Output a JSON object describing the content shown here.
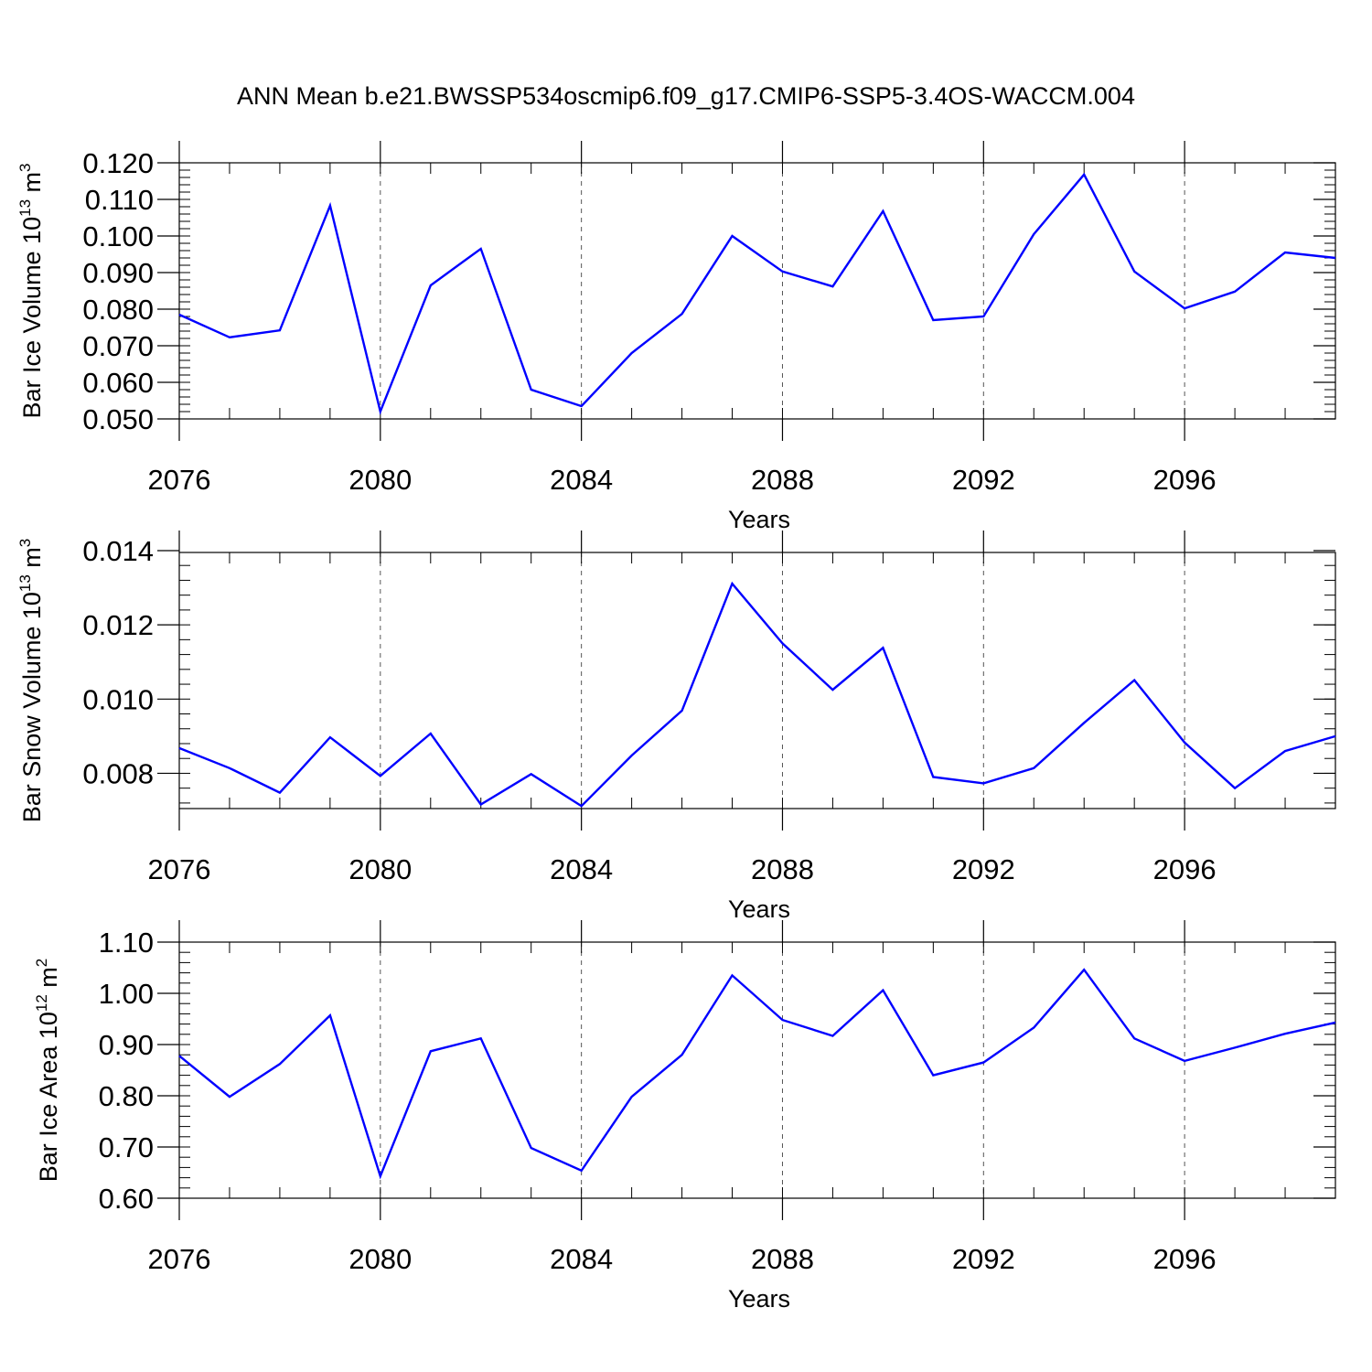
{
  "title": "ANN Mean b.e21.BWSSP534oscmip6.f09_g17.CMIP6-SSP5-3.4OS-WACCM.004",
  "colors": {
    "line": "#0000ff",
    "axis": "#000000",
    "grid": "#555555"
  },
  "chart_data": [
    {
      "type": "line",
      "ylabel": {
        "main": "Bar Ice Volume 10",
        "sup": "13",
        "unit": " m",
        "unit_sup": "3"
      },
      "xlabel": "Years",
      "xlim": [
        2076,
        2099
      ],
      "ylim": [
        0.05,
        0.12
      ],
      "yticks": [
        0.05,
        0.06,
        0.07,
        0.08,
        0.09,
        0.1,
        0.11,
        0.12
      ],
      "ytick_labels": [
        "0.050",
        "0.060",
        "0.070",
        "0.080",
        "0.090",
        "0.100",
        "0.110",
        "0.120"
      ],
      "xticks": [
        2076,
        2080,
        2084,
        2088,
        2092,
        2096
      ],
      "xtick_labels": [
        "2076",
        "2080",
        "2084",
        "2088",
        "2092",
        "2096"
      ],
      "x": [
        2076,
        2077,
        2078,
        2079,
        2080,
        2081,
        2082,
        2083,
        2084,
        2085,
        2086,
        2087,
        2088,
        2089,
        2090,
        2091,
        2092,
        2093,
        2094,
        2095,
        2096,
        2097,
        2098,
        2099
      ],
      "values": [
        0.0785,
        0.0723,
        0.0742,
        0.1083,
        0.052,
        0.0865,
        0.0965,
        0.058,
        0.0535,
        0.068,
        0.0787,
        0.1,
        0.0903,
        0.0862,
        0.1068,
        0.077,
        0.078,
        0.1005,
        0.1168,
        0.0903,
        0.0802,
        0.0848,
        0.0955,
        0.094
      ]
    },
    {
      "type": "line",
      "ylabel": {
        "main": "Bar Snow Volume 10",
        "sup": "13",
        "unit": " m",
        "unit_sup": "3"
      },
      "xlabel": "Years",
      "xlim": [
        2076,
        2099
      ],
      "ylim": [
        0.00705,
        0.01395
      ],
      "yticks": [
        0.008,
        0.01,
        0.012,
        0.014
      ],
      "ytick_labels": [
        "0.008",
        "0.010",
        "0.012",
        "0.014"
      ],
      "xticks": [
        2076,
        2080,
        2084,
        2088,
        2092,
        2096
      ],
      "xtick_labels": [
        "2076",
        "2080",
        "2084",
        "2088",
        "2092",
        "2096"
      ],
      "x": [
        2076,
        2077,
        2078,
        2079,
        2080,
        2081,
        2082,
        2083,
        2084,
        2085,
        2086,
        2087,
        2088,
        2089,
        2090,
        2091,
        2092,
        2093,
        2094,
        2095,
        2096,
        2097,
        2098,
        2099
      ],
      "values": [
        0.00868,
        0.00814,
        0.00748,
        0.00897,
        0.00793,
        0.00907,
        0.00716,
        0.00798,
        0.00712,
        0.00848,
        0.00969,
        0.01311,
        0.0115,
        0.01025,
        0.01138,
        0.0079,
        0.00773,
        0.00814,
        0.00936,
        0.01051,
        0.00883,
        0.0076,
        0.0086,
        0.009
      ]
    },
    {
      "type": "line",
      "ylabel": {
        "main": "Bar Ice Area 10",
        "sup": "12",
        "unit": " m",
        "unit_sup": "2"
      },
      "xlabel": "Years",
      "xlim": [
        2076,
        2099
      ],
      "ylim": [
        0.6,
        1.1
      ],
      "yticks": [
        0.6,
        0.7,
        0.8,
        0.9,
        1.0,
        1.1
      ],
      "ytick_labels": [
        "0.60",
        "0.70",
        "0.80",
        "0.90",
        "1.00",
        "1.10"
      ],
      "xticks": [
        2076,
        2080,
        2084,
        2088,
        2092,
        2096
      ],
      "xtick_labels": [
        "2076",
        "2080",
        "2084",
        "2088",
        "2092",
        "2096"
      ],
      "x": [
        2076,
        2077,
        2078,
        2079,
        2080,
        2081,
        2082,
        2083,
        2084,
        2085,
        2086,
        2087,
        2088,
        2089,
        2090,
        2091,
        2092,
        2093,
        2094,
        2095,
        2096,
        2097,
        2098,
        2099
      ],
      "values": [
        0.878,
        0.798,
        0.862,
        0.957,
        0.643,
        0.887,
        0.912,
        0.698,
        0.654,
        0.798,
        0.88,
        1.035,
        0.948,
        0.917,
        1.006,
        0.84,
        0.865,
        0.933,
        1.046,
        0.912,
        0.868,
        0.894,
        0.921,
        0.943
      ]
    }
  ]
}
